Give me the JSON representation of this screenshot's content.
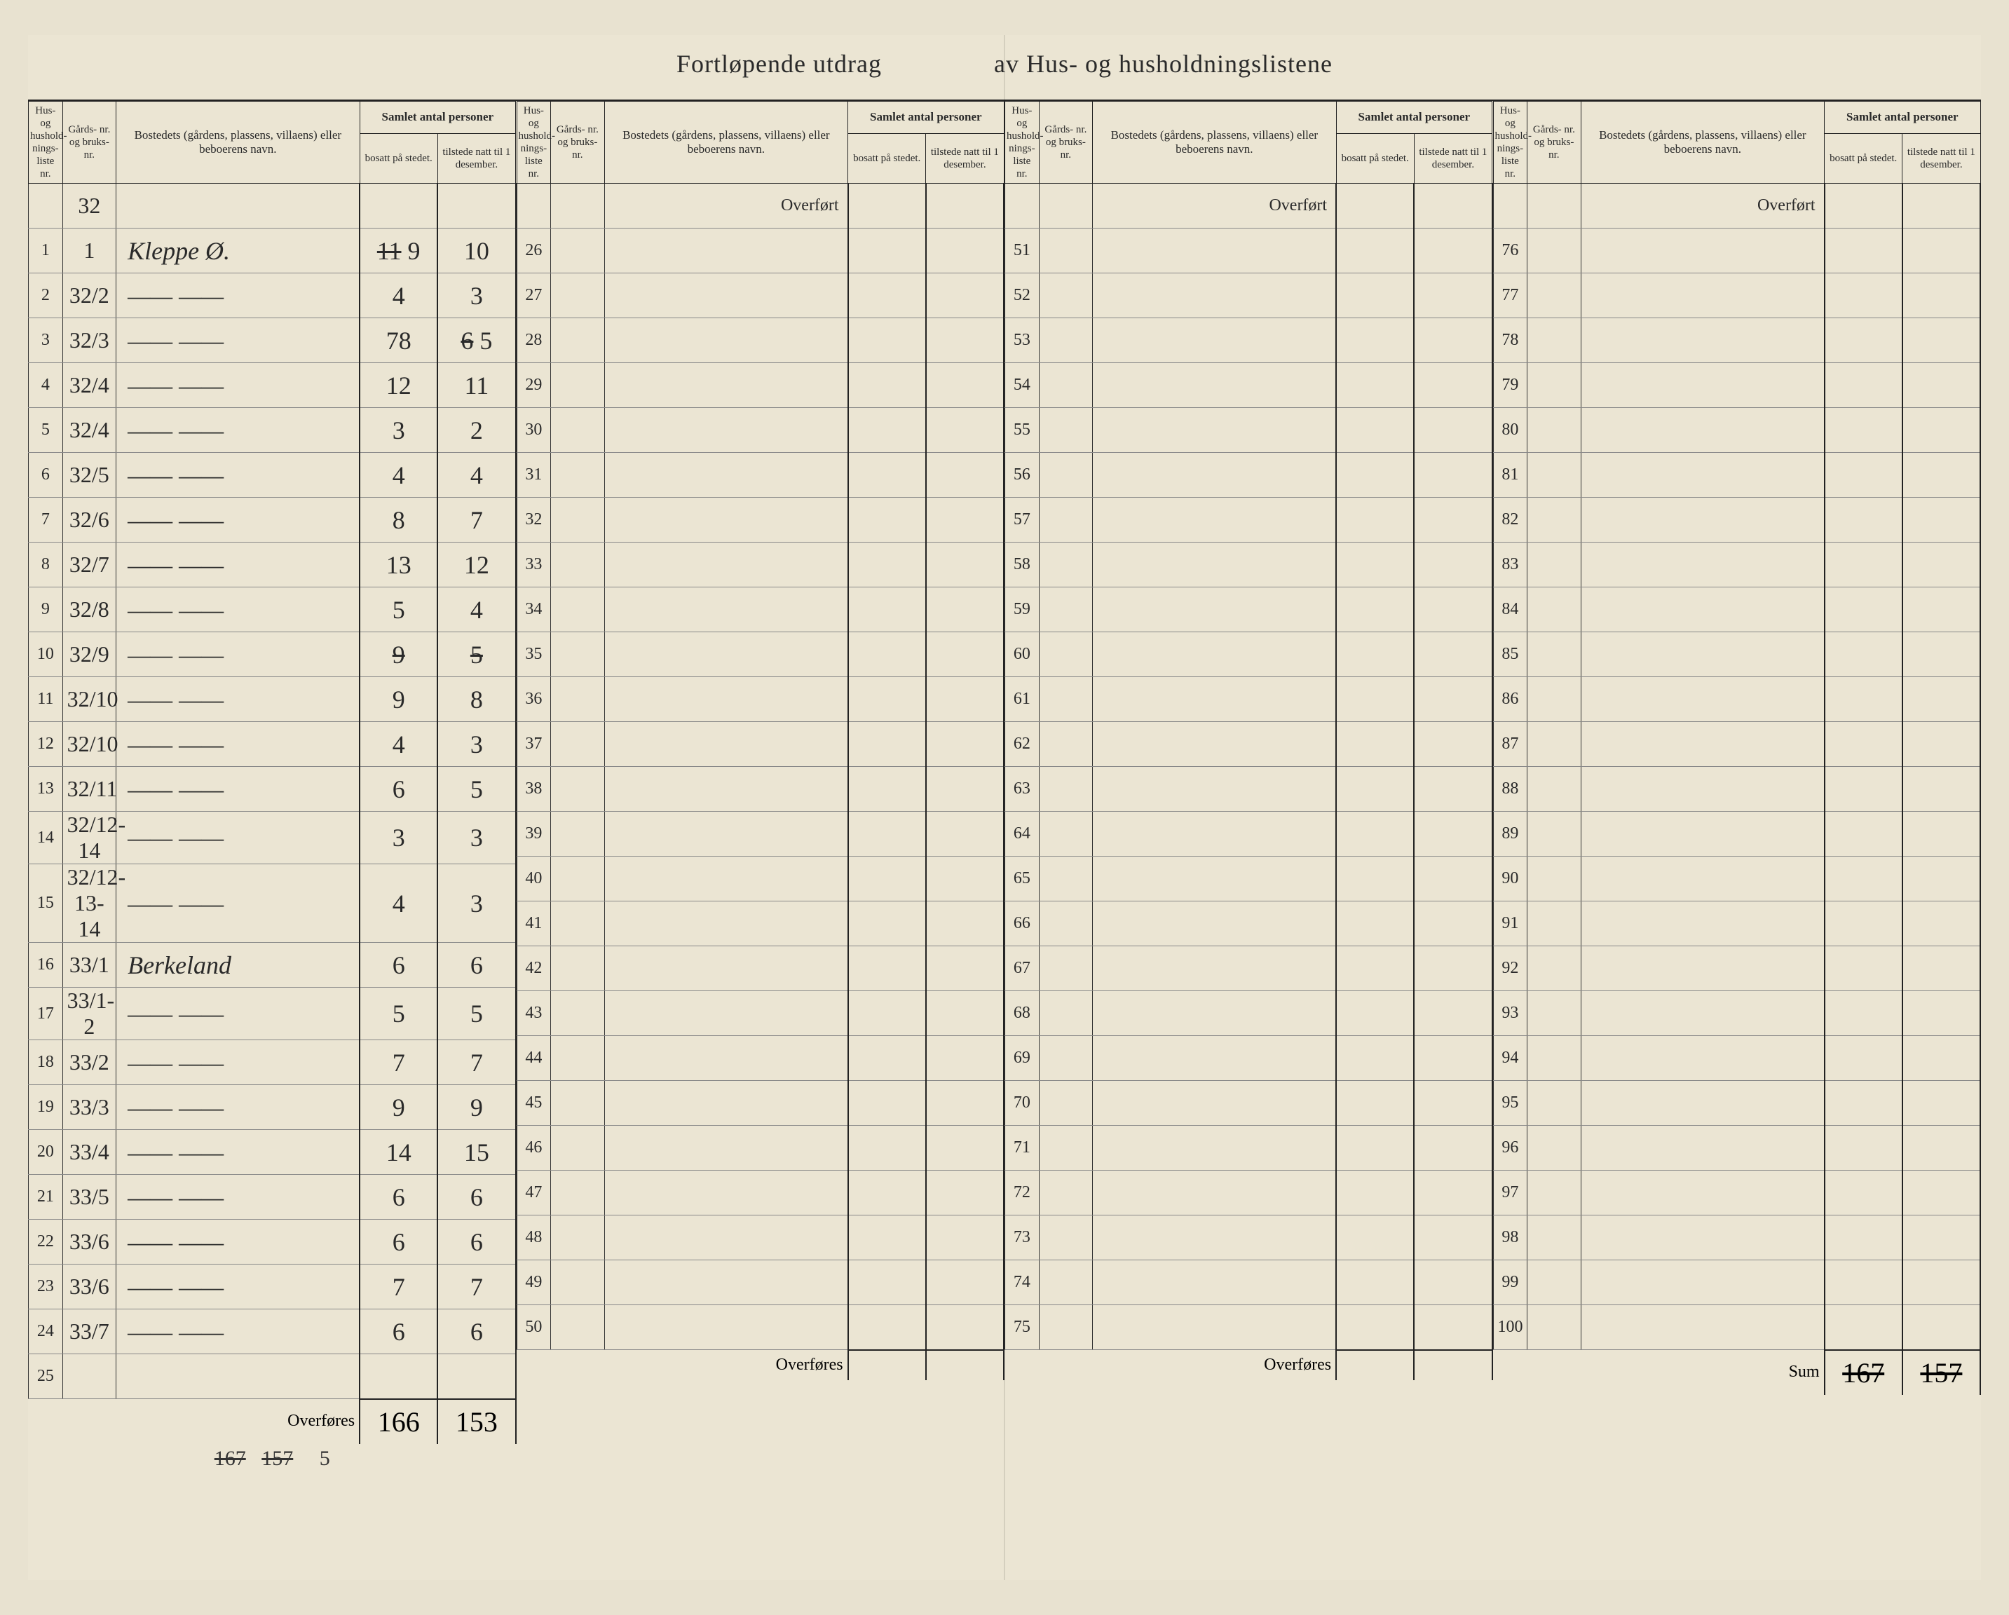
{
  "title_left": "Fortløpende utdrag",
  "title_right": "av Hus- og husholdningslistene",
  "headers": {
    "col_num": "Hus- og hushold- nings- liste nr.",
    "col_gard": "Gårds- nr. og bruks- nr.",
    "col_name": "Bostedets (gårdens, plassens, villaens) eller beboerens navn.",
    "col_group": "Samlet antal personer",
    "col_bosatt": "bosatt på stedet.",
    "col_tilstede": "tilstede natt til 1 desember."
  },
  "labels": {
    "overfort": "Overført",
    "overfores": "Overføres",
    "sum": "Sum"
  },
  "q1": {
    "pre_gard": "32",
    "rows": [
      {
        "n": "1",
        "g": "1",
        "name": "Kleppe Ø.",
        "b": "9",
        "t": "10",
        "note_b": "11"
      },
      {
        "n": "2",
        "g": "32/2",
        "name": "—— ——",
        "b": "4",
        "t": "3"
      },
      {
        "n": "3",
        "g": "32/3",
        "name": "—— ——",
        "b": "78",
        "t": "6",
        "note_t": "5"
      },
      {
        "n": "4",
        "g": "32/4",
        "name": "—— ——",
        "b": "12",
        "t": "11"
      },
      {
        "n": "5",
        "g": "32/4",
        "name": "—— ——",
        "b": "3",
        "t": "2"
      },
      {
        "n": "6",
        "g": "32/5",
        "name": "—— ——",
        "b": "4",
        "t": "4"
      },
      {
        "n": "7",
        "g": "32/6",
        "name": "—— ——",
        "b": "8",
        "t": "7"
      },
      {
        "n": "8",
        "g": "32/7",
        "name": "—— ——",
        "b": "13",
        "t": "12"
      },
      {
        "n": "9",
        "g": "32/8",
        "name": "—— ——",
        "b": "5",
        "t": "4"
      },
      {
        "n": "10",
        "g": "32/9",
        "name": "—— ——",
        "b": "9",
        "t": "5",
        "strike": true
      },
      {
        "n": "11",
        "g": "32/10",
        "name": "—— ——",
        "b": "9",
        "t": "8"
      },
      {
        "n": "12",
        "g": "32/10",
        "name": "—— ——",
        "b": "4",
        "t": "3"
      },
      {
        "n": "13",
        "g": "32/11",
        "name": "—— ——",
        "b": "6",
        "t": "5"
      },
      {
        "n": "14",
        "g": "32/12-14",
        "name": "—— ——",
        "b": "3",
        "t": "3"
      },
      {
        "n": "15",
        "g": "32/12-13-14",
        "name": "—— ——",
        "b": "4",
        "t": "3"
      },
      {
        "n": "16",
        "g": "33/1",
        "name": "Berkeland",
        "b": "6",
        "t": "6"
      },
      {
        "n": "17",
        "g": "33/1-2",
        "name": "—— ——",
        "b": "5",
        "t": "5"
      },
      {
        "n": "18",
        "g": "33/2",
        "name": "—— ——",
        "b": "7",
        "t": "7"
      },
      {
        "n": "19",
        "g": "33/3",
        "name": "—— ——",
        "b": "9",
        "t": "9"
      },
      {
        "n": "20",
        "g": "33/4",
        "name": "—— ——",
        "b": "14",
        "t": "15"
      },
      {
        "n": "21",
        "g": "33/5",
        "name": "—— ——",
        "b": "6",
        "t": "6"
      },
      {
        "n": "22",
        "g": "33/6",
        "name": "—— ——",
        "b": "6",
        "t": "6"
      },
      {
        "n": "23",
        "g": "33/6",
        "name": "—— ——",
        "b": "7",
        "t": "7"
      },
      {
        "n": "24",
        "g": "33/7",
        "name": "—— ——",
        "b": "6",
        "t": "6"
      },
      {
        "n": "25",
        "g": "",
        "name": "",
        "b": "",
        "t": ""
      }
    ],
    "footer_b": "166",
    "footer_t": "153",
    "below_b": "167",
    "below_t": "157",
    "below_end": "5"
  },
  "q2": {
    "start": 26,
    "end": 50
  },
  "q3": {
    "start": 51,
    "end": 75
  },
  "q4": {
    "start": 76,
    "end": 100,
    "sum_b": "167",
    "sum_t": "157"
  },
  "colors": {
    "paper": "#ebe5d3",
    "ink": "#2a2a2a",
    "rule": "#333333",
    "rule_light": "#888888"
  }
}
